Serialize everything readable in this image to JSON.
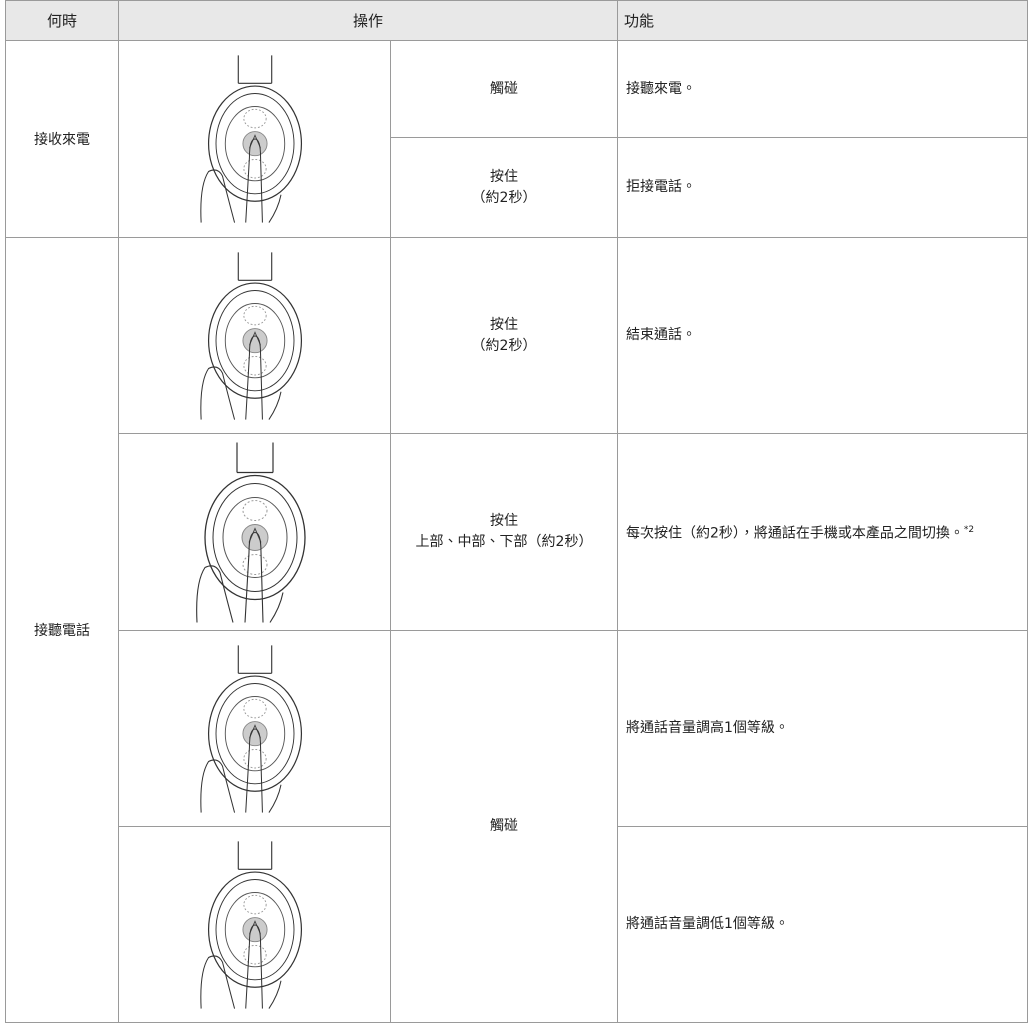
{
  "header": {
    "when": "何時",
    "operation": "操作",
    "function": "功能"
  },
  "rows": [
    {
      "when": "接收來電",
      "action": [
        "觸碰"
      ],
      "function": "接聽來電。"
    },
    {
      "action": [
        "按住",
        "（約2秒）"
      ],
      "function": "拒接電話。"
    },
    {
      "when": "接聽電話",
      "action": [
        "按住",
        "（約2秒）"
      ],
      "function": "結束通話。"
    },
    {
      "action": [
        "按住",
        "上部、中部、下部（約2秒）"
      ],
      "function": "每次按住（約2秒），將通話在手機或本產品之間切換。",
      "note": "*2"
    },
    {
      "action": [
        "觸碰"
      ],
      "function": "將通話音量調高1個等級。"
    },
    {
      "function": "將通話音量調低1個等級。"
    }
  ]
}
